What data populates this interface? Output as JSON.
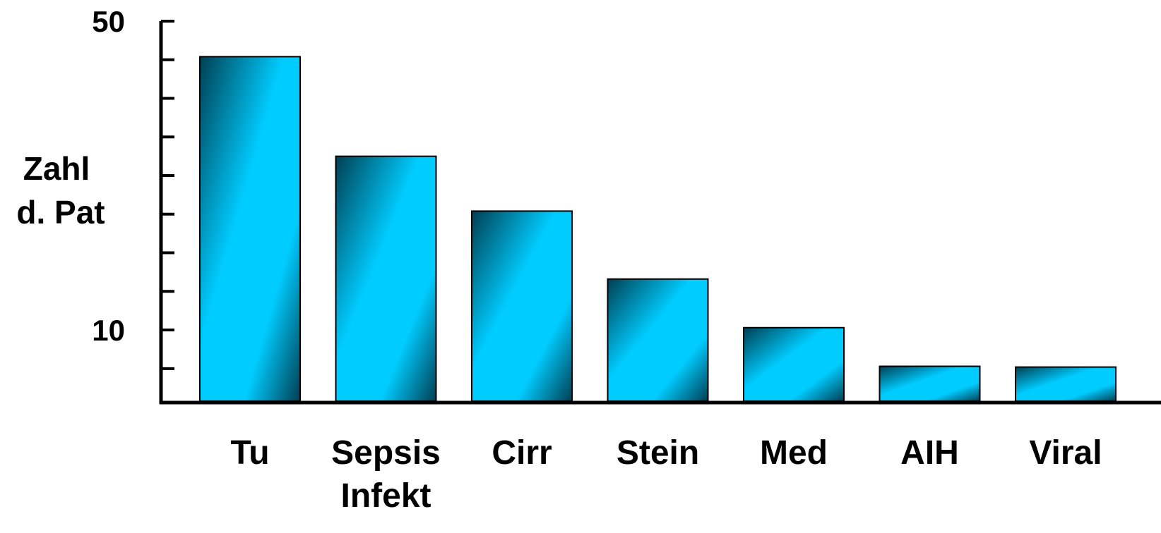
{
  "chart_data": {
    "type": "bar",
    "title": "",
    "xlabel": "",
    "ylabel": [
      "Zahl",
      "d. Pat"
    ],
    "categories": [
      [
        "Tu"
      ],
      [
        "Sepsis",
        "Infekt"
      ],
      [
        "Cirr"
      ],
      [
        "Stein"
      ],
      [
        "Med"
      ],
      [
        "AIH"
      ],
      [
        "Viral"
      ]
    ],
    "values": [
      45.4,
      32.5,
      25.4,
      16.6,
      10.3,
      5.3,
      5.2
    ],
    "ylim": [
      0.6,
      50
    ],
    "ytick_labels": [
      {
        "value": 50,
        "label": "50"
      },
      {
        "value": 10,
        "label": "10"
      }
    ],
    "yticks": [
      5,
      10,
      15,
      20,
      25,
      30,
      35,
      40,
      45,
      50
    ],
    "grid": false,
    "legend": "none",
    "colors": {
      "bar_light": "#00ccff",
      "bar_dark": "#003f52",
      "axis": "#000000"
    }
  }
}
